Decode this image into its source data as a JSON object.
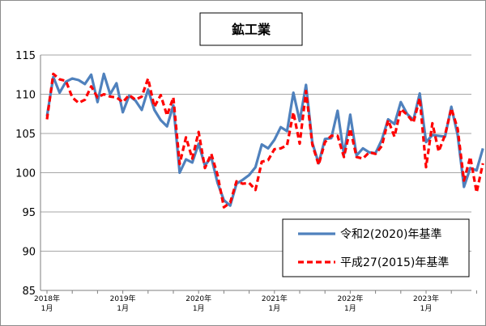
{
  "chart_data": {
    "type": "line",
    "title": "鉱工業",
    "xlabel": "",
    "ylabel": "",
    "ylim": [
      85,
      115
    ],
    "yticks": [
      85,
      90,
      95,
      100,
      105,
      110,
      115
    ],
    "x_tick_labels": [
      {
        "year": "2018年",
        "month": "1月"
      },
      {
        "year": "2019年",
        "month": "1月"
      },
      {
        "year": "2020年",
        "month": "1月"
      },
      {
        "year": "2021年",
        "month": "1月"
      },
      {
        "year": "2022年",
        "month": "1月"
      },
      {
        "year": "2023年",
        "month": "1月"
      }
    ],
    "grid": "horizontal",
    "legend_position": "bottom-right",
    "series": [
      {
        "name": "令和2(2020)年基準",
        "color": "#4f81bd",
        "style": "solid",
        "values": [
          107.2,
          112.2,
          110.2,
          111.6,
          112.0,
          111.8,
          111.3,
          112.5,
          109.0,
          112.6,
          110.0,
          111.4,
          107.7,
          109.8,
          109.2,
          108.0,
          110.6,
          108.0,
          106.7,
          105.9,
          108.6,
          100.0,
          101.7,
          101.3,
          103.7,
          100.9,
          102.0,
          98.7,
          96.5,
          95.8,
          98.6,
          99.1,
          99.7,
          100.7,
          103.6,
          103.1,
          104.2,
          105.8,
          105.3,
          110.2,
          106.6,
          111.2,
          103.8,
          101.2,
          104.3,
          104.4,
          107.9,
          102.3,
          107.4,
          102.2,
          103.1,
          102.6,
          102.5,
          104.2,
          106.8,
          106.2,
          109.0,
          107.5,
          106.7,
          110.1,
          103.9,
          104.8,
          104.7,
          104.6,
          108.4,
          104.8,
          98.2,
          100.6,
          100.3,
          103.1
        ]
      },
      {
        "name": "平成27(2015)年基準",
        "color": "#ff0000",
        "style": "dashed",
        "values": [
          106.8,
          112.6,
          111.9,
          111.7,
          109.6,
          108.9,
          109.3,
          111.0,
          109.6,
          110.0,
          109.7,
          109.6,
          109.0,
          109.9,
          109.3,
          109.7,
          112.0,
          108.4,
          109.9,
          107.3,
          109.6,
          101.1,
          104.5,
          101.8,
          105.2,
          100.6,
          102.4,
          99.7,
          95.6,
          96.2,
          98.9,
          98.6,
          98.7,
          97.8,
          101.4,
          101.6,
          103.0,
          103.1,
          103.5,
          107.7,
          103.7,
          110.4,
          103.6,
          101.0,
          103.9,
          104.7,
          104.7,
          102.0,
          105.6,
          102.0,
          101.8,
          102.6,
          102.4,
          103.4,
          106.7,
          104.6,
          108.1,
          107.4,
          106.4,
          109.5,
          100.7,
          106.3,
          102.7,
          104.8,
          108.2,
          105.6,
          99.0,
          102.0,
          97.5,
          101.2
        ]
      }
    ]
  }
}
